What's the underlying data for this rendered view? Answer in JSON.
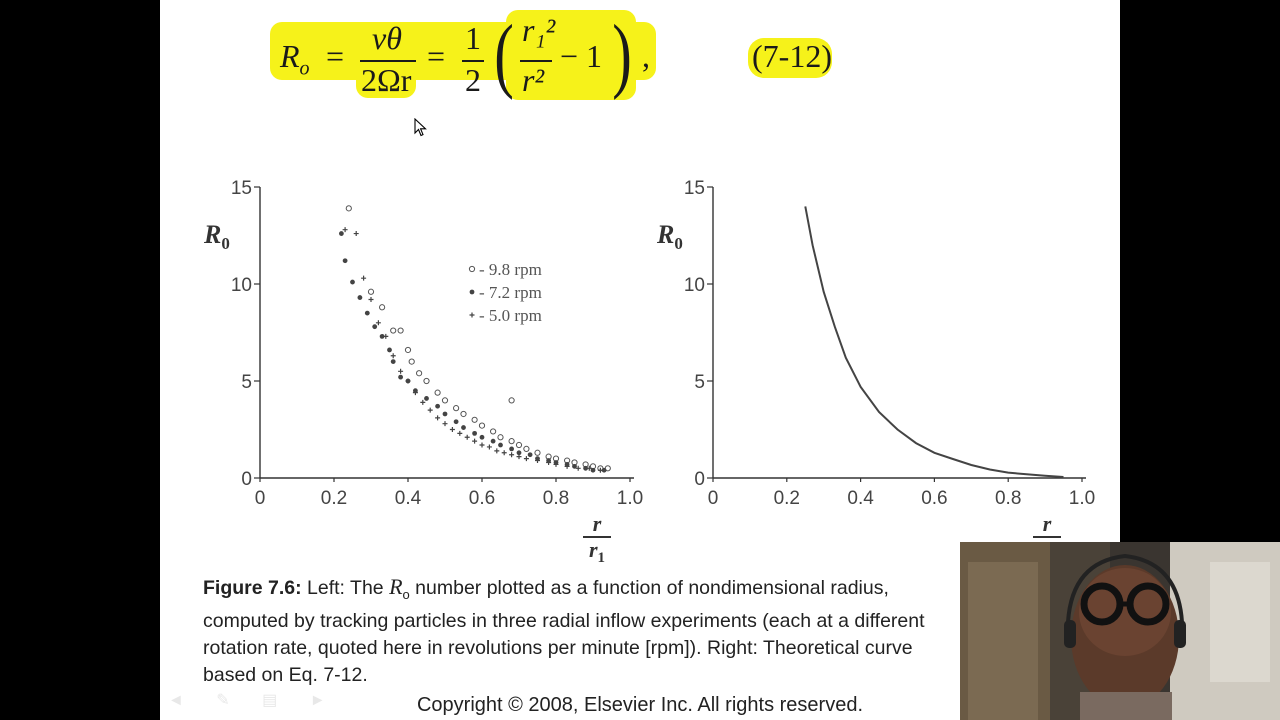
{
  "equation": {
    "lhs_symbol": "R",
    "lhs_sub": "o",
    "eq1": "=",
    "num1": "vθ",
    "den1": "2Ωr",
    "eq2": "=",
    "half_num": "1",
    "half_den": "2",
    "paren_num": "r₁²",
    "paren_den": "r²",
    "minus_one": "− 1",
    "trailing": ",",
    "number": "(7-12)"
  },
  "chart_data": [
    {
      "type": "scatter",
      "title": "",
      "ylabel": "R0",
      "xlabel": "r / r1",
      "xlim": [
        0,
        1.0
      ],
      "ylim": [
        0,
        15
      ],
      "xticks": [
        "0",
        "0.2",
        "0.4",
        "0.6",
        "0.8",
        "1.0"
      ],
      "yticks": [
        "0",
        "5",
        "10",
        "15"
      ],
      "legend": {
        "placement": "top-right",
        "entries": [
          "- 9.8 rpm",
          "- 7.2 rpm",
          "- 5.0 rpm"
        ]
      },
      "series": [
        {
          "name": "9.8 rpm",
          "marker": "circle",
          "x": [
            0.24,
            0.3,
            0.33,
            0.36,
            0.38,
            0.4,
            0.41,
            0.43,
            0.45,
            0.48,
            0.5,
            0.53,
            0.55,
            0.58,
            0.6,
            0.63,
            0.65,
            0.68,
            0.68,
            0.7,
            0.72,
            0.75,
            0.78,
            0.8,
            0.83,
            0.85,
            0.88,
            0.9,
            0.92,
            0.94
          ],
          "y": [
            13.9,
            9.6,
            8.8,
            7.6,
            7.6,
            6.6,
            6.0,
            5.4,
            5.0,
            4.4,
            4.0,
            3.6,
            3.3,
            3.0,
            2.7,
            2.4,
            2.1,
            4.0,
            1.9,
            1.7,
            1.5,
            1.3,
            1.1,
            1.0,
            0.9,
            0.8,
            0.7,
            0.6,
            0.5,
            0.5
          ]
        },
        {
          "name": "7.2 rpm",
          "marker": "dot",
          "x": [
            0.22,
            0.23,
            0.25,
            0.27,
            0.29,
            0.31,
            0.33,
            0.35,
            0.36,
            0.38,
            0.4,
            0.42,
            0.45,
            0.48,
            0.5,
            0.53,
            0.55,
            0.58,
            0.6,
            0.63,
            0.65,
            0.68,
            0.7,
            0.73,
            0.75,
            0.78,
            0.8,
            0.83,
            0.85,
            0.88,
            0.9,
            0.93
          ],
          "y": [
            12.6,
            11.2,
            10.1,
            9.3,
            8.5,
            7.8,
            7.3,
            6.6,
            6.0,
            5.2,
            5.0,
            4.5,
            4.1,
            3.7,
            3.3,
            2.9,
            2.6,
            2.3,
            2.1,
            1.9,
            1.7,
            1.5,
            1.3,
            1.2,
            1.0,
            0.9,
            0.8,
            0.7,
            0.6,
            0.5,
            0.4,
            0.4
          ]
        },
        {
          "name": "5.0 rpm",
          "marker": "plus",
          "x": [
            0.23,
            0.26,
            0.28,
            0.3,
            0.32,
            0.34,
            0.36,
            0.38,
            0.4,
            0.42,
            0.44,
            0.46,
            0.48,
            0.5,
            0.52,
            0.54,
            0.56,
            0.58,
            0.6,
            0.62,
            0.64,
            0.66,
            0.68,
            0.7,
            0.72,
            0.75,
            0.78,
            0.8,
            0.83,
            0.86,
            0.89,
            0.92
          ],
          "y": [
            12.8,
            12.6,
            10.3,
            9.2,
            8.0,
            7.3,
            6.3,
            5.5,
            5.0,
            4.4,
            3.9,
            3.5,
            3.1,
            2.8,
            2.5,
            2.3,
            2.1,
            1.9,
            1.7,
            1.6,
            1.4,
            1.3,
            1.2,
            1.1,
            1.0,
            0.9,
            0.8,
            0.7,
            0.6,
            0.5,
            0.5,
            0.4
          ]
        }
      ]
    },
    {
      "type": "line",
      "title": "",
      "ylabel": "R0",
      "xlabel": "r",
      "xlim": [
        0,
        1.0
      ],
      "ylim": [
        0,
        15
      ],
      "xticks": [
        "0",
        "0.2",
        "0.4",
        "0.6",
        "0.8",
        "1.0"
      ],
      "yticks": [
        "0",
        "5",
        "10",
        "15"
      ],
      "series": [
        {
          "name": "",
          "x": [
            0.25,
            0.27,
            0.3,
            0.33,
            0.36,
            0.4,
            0.45,
            0.5,
            0.55,
            0.6,
            0.65,
            0.7,
            0.75,
            0.8,
            0.85,
            0.9,
            0.95
          ],
          "y": [
            14.0,
            12.0,
            9.6,
            7.8,
            6.2,
            4.7,
            3.4,
            2.5,
            1.8,
            1.3,
            0.98,
            0.67,
            0.44,
            0.28,
            0.19,
            0.12,
            0.05
          ]
        }
      ]
    }
  ],
  "caption": {
    "label": "Figure 7.6:",
    "p1": " Left: The ",
    "sym": "R",
    "sub": "o",
    "p2": " number plotted as a function of nondimensional radius, ",
    "line2": "computed by tracking particles in three radial inflow experiments (each at a different",
    "line3": "rotation rate, quoted here in revolutions per minute [rpm]). Right: Theoretical curve",
    "line4": "based on Eq. 7-12."
  },
  "copyright": "Copyright © 2008, Elsevier Inc. All rights reserved.",
  "colors": {
    "highlight": "#f6f21a",
    "ink": "#333333"
  },
  "icons": [
    "cursor-icon",
    "nav-arrows-icon"
  ]
}
